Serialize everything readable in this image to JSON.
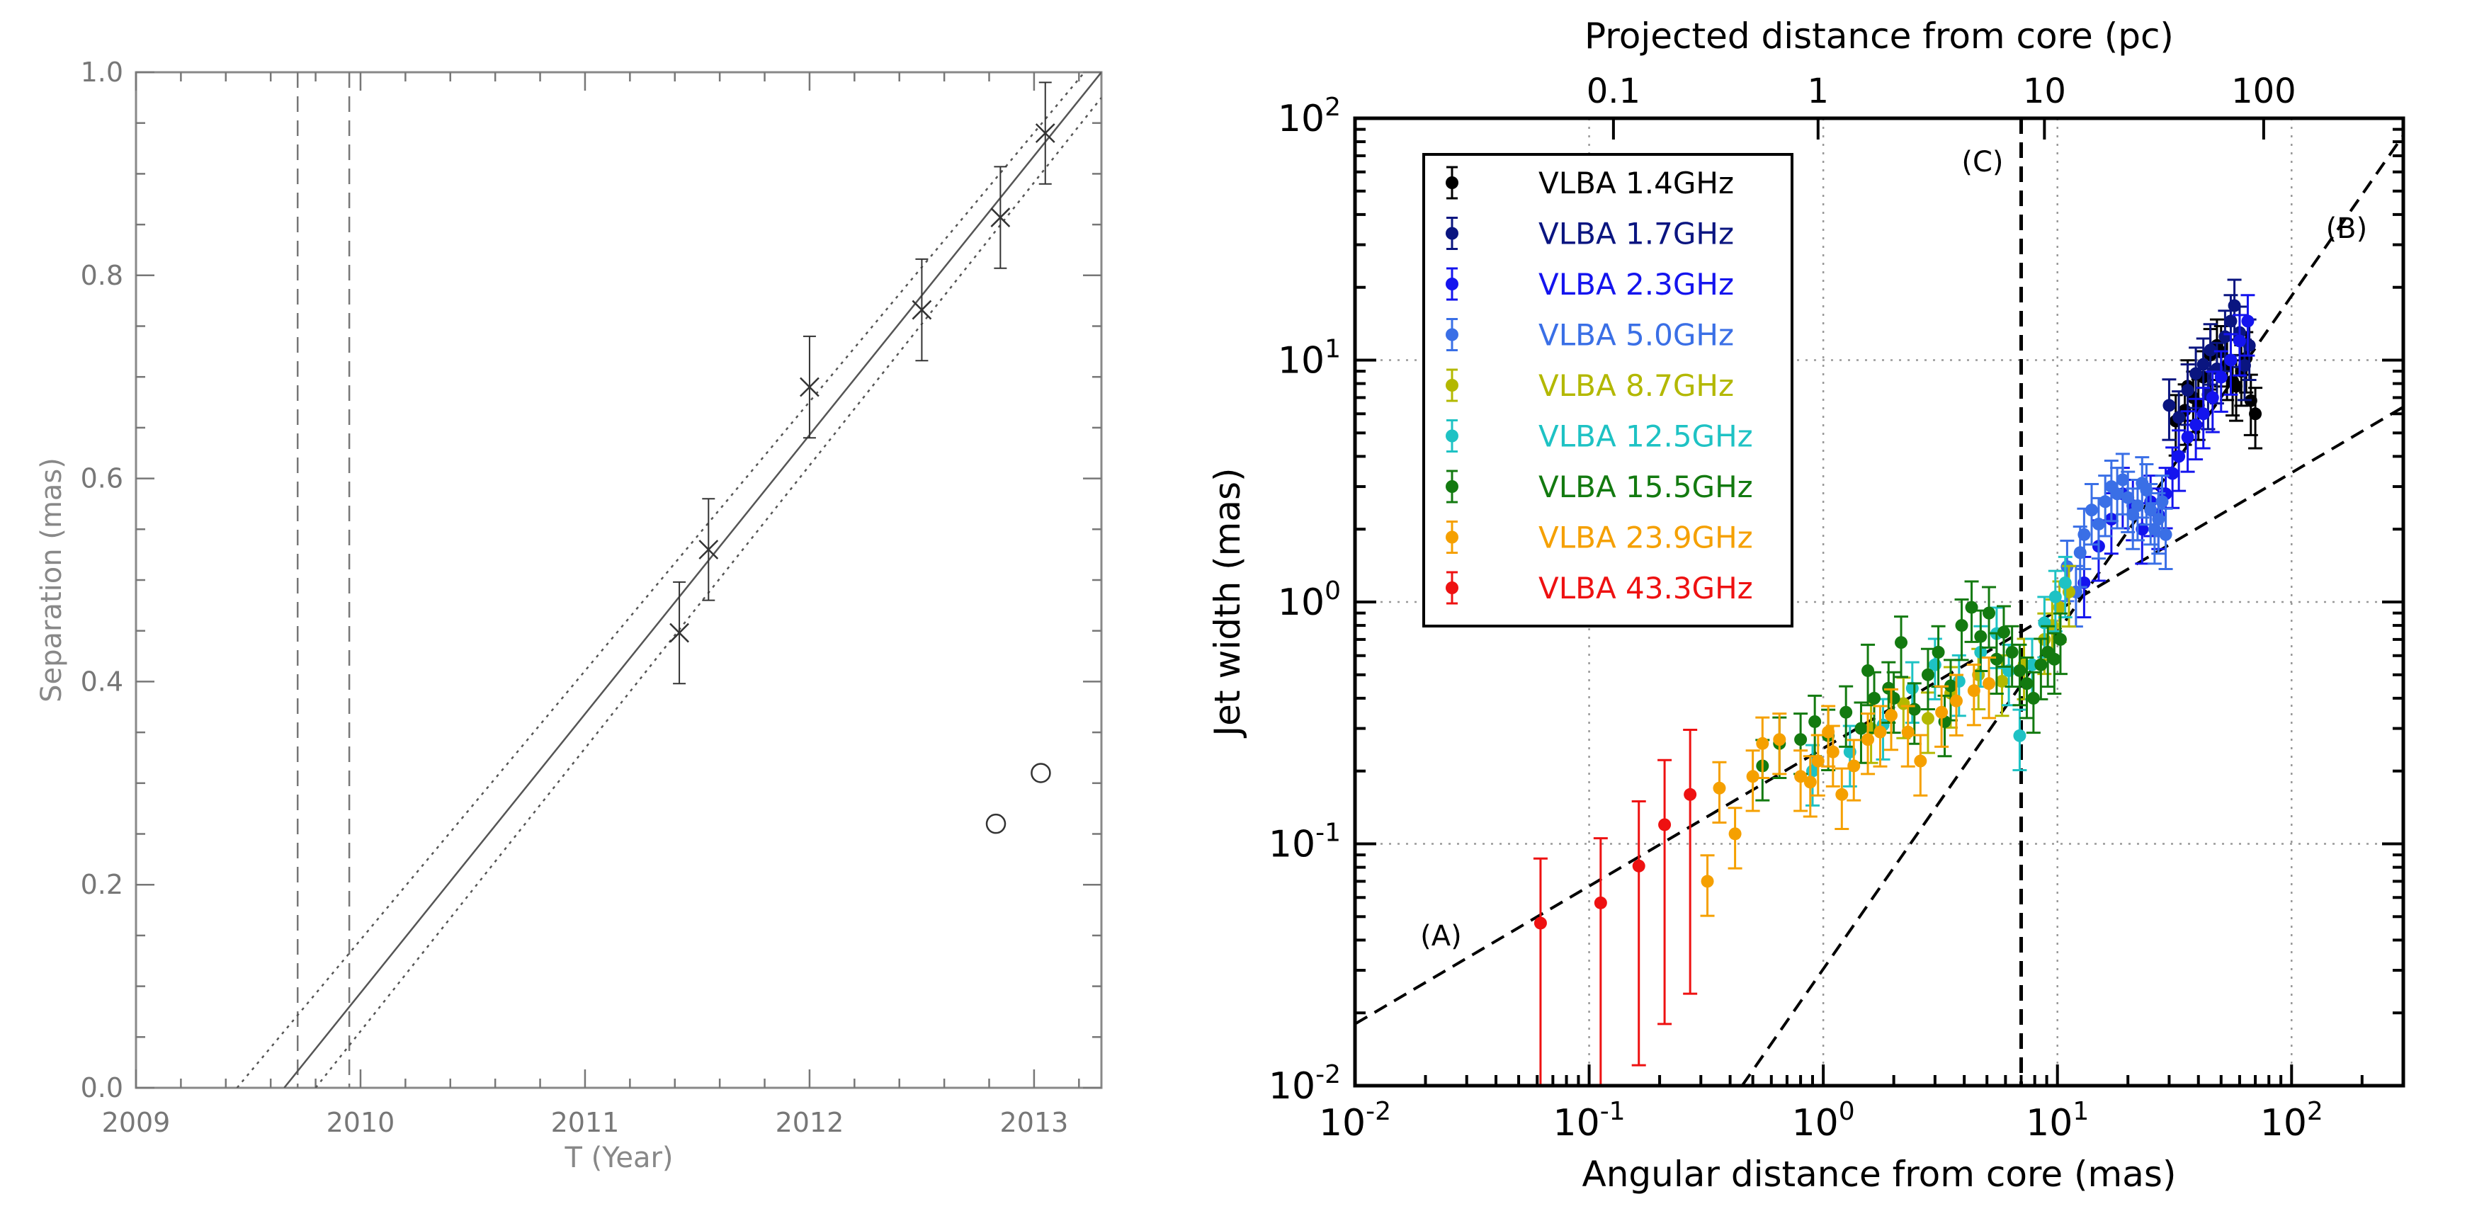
{
  "chart_data": [
    {
      "type": "scatter",
      "xlabel": "T (Year)",
      "ylabel": "Separation (mas)",
      "xlim": [
        2009,
        2013.3
      ],
      "ylim": [
        0,
        1.0
      ],
      "xticks": [
        {
          "value": 2009,
          "label": "2009"
        },
        {
          "value": 2010,
          "label": "2010"
        },
        {
          "value": 2011,
          "label": "2011"
        },
        {
          "value": 2012,
          "label": "2012"
        },
        {
          "value": 2013,
          "label": "2013"
        }
      ],
      "yticks": [
        {
          "value": 0.0,
          "label": "0.0"
        },
        {
          "value": 0.2,
          "label": "0.2"
        },
        {
          "value": 0.4,
          "label": "0.4"
        },
        {
          "value": 0.6,
          "label": "0.6"
        },
        {
          "value": 0.8,
          "label": "0.8"
        },
        {
          "value": 1.0,
          "label": "1.0"
        }
      ],
      "series": [
        {
          "name": "cross markers",
          "marker": "x",
          "points": [
            {
              "x": 2011.42,
              "y": 0.448,
              "err": 0.05
            },
            {
              "x": 2011.55,
              "y": 0.53,
              "err": 0.05
            },
            {
              "x": 2012.0,
              "y": 0.69,
              "err": 0.05
            },
            {
              "x": 2012.5,
              "y": 0.766,
              "err": 0.05
            },
            {
              "x": 2012.85,
              "y": 0.857,
              "err": 0.05
            },
            {
              "x": 2013.05,
              "y": 0.94,
              "err": 0.05
            }
          ]
        },
        {
          "name": "open circles",
          "marker": "o",
          "points": [
            {
              "x": 2012.83,
              "y": 0.26
            },
            {
              "x": 2013.03,
              "y": 0.31
            }
          ]
        }
      ],
      "fit_lines": [
        {
          "style": "solid",
          "from": [
            2009.66,
            0.0
          ],
          "to": [
            2013.3,
            1.0
          ]
        },
        {
          "style": "dotted",
          "from": [
            2009.45,
            0.0
          ],
          "to": [
            2013.3,
            1.02
          ]
        },
        {
          "style": "dotted",
          "from": [
            2009.8,
            0.0
          ],
          "to": [
            2013.3,
            0.975
          ]
        }
      ],
      "vertical_lines": [
        {
          "style": "dashed",
          "x": 2009.72
        },
        {
          "style": "dashed",
          "x": 2009.95
        }
      ]
    },
    {
      "type": "scatter",
      "xscale": "log",
      "yscale": "log",
      "xlabel": "Angular distance from core (mas)",
      "ylabel": "Jet width (mas)",
      "top_xlabel": "Projected distance from core (pc)",
      "xlim": [
        0.01,
        300
      ],
      "ylim": [
        0.01,
        100
      ],
      "grid": true,
      "xticks": [
        {
          "value": 0.01,
          "base": "10",
          "exp": "-2"
        },
        {
          "value": 0.1,
          "base": "10",
          "exp": "-1"
        },
        {
          "value": 1,
          "base": "10",
          "exp": "0"
        },
        {
          "value": 10,
          "base": "10",
          "exp": "1"
        },
        {
          "value": 100,
          "base": "10",
          "exp": "2"
        }
      ],
      "yticks": [
        {
          "value": 0.01,
          "base": "10",
          "exp": "-2"
        },
        {
          "value": 0.1,
          "base": "10",
          "exp": "-1"
        },
        {
          "value": 1,
          "base": "10",
          "exp": "0"
        },
        {
          "value": 10,
          "base": "10",
          "exp": "1"
        },
        {
          "value": 100,
          "base": "10",
          "exp": "2"
        }
      ],
      "top_xticks": [
        {
          "mas": 0.127,
          "label": "0.1"
        },
        {
          "mas": 0.95,
          "label": "1"
        },
        {
          "mas": 8.8,
          "label": "10"
        },
        {
          "mas": 76,
          "label": "100"
        }
      ],
      "legend_position": "top-left",
      "series": [
        {
          "name": "VLBA 1.4GHz",
          "color": "#000000",
          "points": [
            [
              32,
              5.6
            ],
            [
              35,
              6.2
            ],
            [
              38,
              7.0
            ],
            [
              42,
              8.5
            ],
            [
              45,
              10.5
            ],
            [
              48,
              11.5
            ],
            [
              50,
              10.8
            ],
            [
              53,
              9.5
            ],
            [
              56,
              8.2
            ],
            [
              58,
              7.8
            ],
            [
              61,
              9.0
            ],
            [
              64,
              10.2
            ],
            [
              67,
              6.8
            ],
            [
              70,
              6.0
            ],
            [
              40,
              6.5
            ],
            [
              36,
              7.8
            ]
          ]
        },
        {
          "name": "VLBA 1.7GHz",
          "color": "#0a1580",
          "points": [
            [
              30,
              6.5
            ],
            [
              33,
              5.8
            ],
            [
              36,
              7.5
            ],
            [
              39,
              8.8
            ],
            [
              42,
              9.6
            ],
            [
              45,
              11.0
            ],
            [
              48,
              9.2
            ],
            [
              52,
              12.5
            ],
            [
              55,
              14.5
            ],
            [
              57,
              16.8
            ],
            [
              60,
              13.0
            ],
            [
              63,
              9.5
            ],
            [
              66,
              11.5
            ],
            [
              44,
              7.2
            ]
          ]
        },
        {
          "name": "VLBA 2.3GHz",
          "color": "#1414ee",
          "points": [
            [
              13,
              1.2
            ],
            [
              15,
              1.7
            ],
            [
              17,
              2.2
            ],
            [
              19,
              2.8
            ],
            [
              21,
              2.5
            ],
            [
              23,
              2.0
            ],
            [
              25,
              2.6
            ],
            [
              27,
              2.3
            ],
            [
              29,
              2.8
            ],
            [
              31,
              3.4
            ],
            [
              33,
              4.0
            ],
            [
              36,
              4.8
            ],
            [
              39,
              5.4
            ],
            [
              42,
              6.0
            ],
            [
              46,
              7.0
            ],
            [
              50,
              8.5
            ],
            [
              55,
              10.0
            ],
            [
              60,
              12.0
            ],
            [
              65,
              14.5
            ]
          ]
        },
        {
          "name": "VLBA 5.0GHz",
          "color": "#3a6fe6",
          "points": [
            [
              11,
              1.4
            ],
            [
              12,
              1.1
            ],
            [
              13,
              1.9
            ],
            [
              14,
              2.4
            ],
            [
              15,
              2.1
            ],
            [
              16,
              2.6
            ],
            [
              17,
              3.0
            ],
            [
              18,
              2.8
            ],
            [
              19,
              3.2
            ],
            [
              20,
              2.7
            ],
            [
              21,
              2.3
            ],
            [
              22,
              2.5
            ],
            [
              23,
              3.1
            ],
            [
              24,
              2.9
            ],
            [
              25,
              2.4
            ],
            [
              26,
              2.0
            ],
            [
              27,
              2.2
            ],
            [
              28,
              2.6
            ],
            [
              29,
              1.9
            ],
            [
              12.5,
              1.6
            ]
          ]
        },
        {
          "name": "VLBA 8.7GHz",
          "color": "#b3b800",
          "points": [
            [
              1.6,
              0.3
            ],
            [
              2.2,
              0.38
            ],
            [
              2.8,
              0.33
            ],
            [
              3.5,
              0.42
            ],
            [
              4.6,
              0.5
            ],
            [
              5.8,
              0.47
            ],
            [
              7.2,
              0.55
            ],
            [
              8.8,
              0.7
            ],
            [
              10.2,
              0.95
            ],
            [
              11.2,
              1.1
            ],
            [
              9.5,
              0.8
            ]
          ]
        },
        {
          "name": "VLBA 12.5GHz",
          "color": "#1ec2c4",
          "points": [
            [
              0.9,
              0.2
            ],
            [
              1.3,
              0.24
            ],
            [
              1.8,
              0.31
            ],
            [
              2.4,
              0.44
            ],
            [
              3.0,
              0.55
            ],
            [
              3.8,
              0.47
            ],
            [
              4.7,
              0.62
            ],
            [
              5.5,
              0.74
            ],
            [
              6.2,
              0.52
            ],
            [
              6.9,
              0.28
            ],
            [
              7.8,
              0.55
            ],
            [
              8.8,
              0.82
            ],
            [
              9.8,
              1.05
            ],
            [
              10.8,
              1.2
            ]
          ]
        },
        {
          "name": "VLBA 15.5GHz",
          "color": "#137a10",
          "points": [
            [
              0.55,
              0.21
            ],
            [
              0.65,
              0.26
            ],
            [
              0.8,
              0.27
            ],
            [
              0.92,
              0.32
            ],
            [
              1.05,
              0.28
            ],
            [
              1.25,
              0.35
            ],
            [
              1.45,
              0.3
            ],
            [
              1.65,
              0.4
            ],
            [
              1.9,
              0.44
            ],
            [
              2.15,
              0.68
            ],
            [
              2.45,
              0.36
            ],
            [
              2.8,
              0.5
            ],
            [
              3.1,
              0.62
            ],
            [
              3.5,
              0.45
            ],
            [
              3.9,
              0.8
            ],
            [
              4.3,
              0.95
            ],
            [
              4.7,
              0.72
            ],
            [
              5.1,
              0.9
            ],
            [
              5.5,
              0.58
            ],
            [
              5.9,
              0.75
            ],
            [
              6.4,
              0.62
            ],
            [
              6.9,
              0.52
            ],
            [
              7.4,
              0.46
            ],
            [
              7.9,
              0.4
            ],
            [
              8.5,
              0.55
            ],
            [
              9.1,
              0.62
            ],
            [
              9.7,
              0.58
            ],
            [
              10.3,
              0.7
            ],
            [
              3.3,
              0.32
            ],
            [
              2.0,
              0.4
            ],
            [
              1.55,
              0.52
            ]
          ]
        },
        {
          "name": "VLBA 23.9GHz",
          "color": "#f5a000",
          "points": [
            [
              0.32,
              0.07
            ],
            [
              0.36,
              0.17
            ],
            [
              0.42,
              0.11
            ],
            [
              0.5,
              0.19
            ],
            [
              0.55,
              0.26
            ],
            [
              0.65,
              0.27
            ],
            [
              0.8,
              0.19
            ],
            [
              0.88,
              0.18
            ],
            [
              0.95,
              0.22
            ],
            [
              1.1,
              0.24
            ],
            [
              1.2,
              0.16
            ],
            [
              1.35,
              0.21
            ],
            [
              1.55,
              0.27
            ],
            [
              1.75,
              0.29
            ],
            [
              1.95,
              0.34
            ],
            [
              2.3,
              0.29
            ],
            [
              2.6,
              0.22
            ],
            [
              3.2,
              0.35
            ],
            [
              3.7,
              0.39
            ],
            [
              4.4,
              0.43
            ],
            [
              5.1,
              0.46
            ],
            [
              1.05,
              0.29
            ]
          ]
        },
        {
          "name": "VLBA 43.3GHz",
          "color": "#ee1111",
          "points": [
            [
              0.062,
              0.047
            ],
            [
              0.112,
              0.057
            ],
            [
              0.163,
              0.081
            ],
            [
              0.21,
              0.12
            ],
            [
              0.27,
              0.16
            ]
          ]
        }
      ],
      "guide_lines": [
        {
          "style": "dashed",
          "label": "(A)",
          "from": [
            0.01,
            0.018
          ],
          "to": [
            300,
            6.4
          ]
        },
        {
          "style": "dashed",
          "label": "(B)",
          "from": [
            0.45,
            0.01
          ],
          "to": [
            300,
            85
          ]
        },
        {
          "style": "dashed",
          "label": "(C)",
          "vertical_x": 7.0
        }
      ]
    }
  ]
}
